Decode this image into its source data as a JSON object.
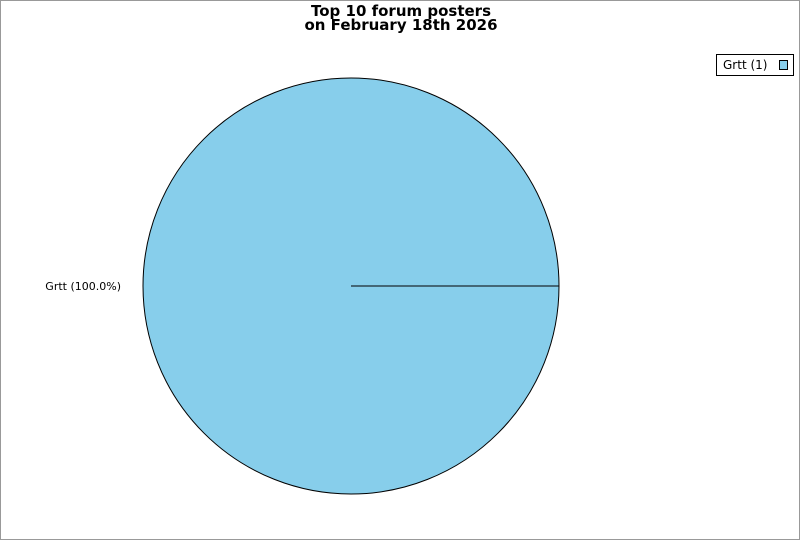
{
  "chart_data": {
    "type": "pie",
    "title": [
      "Top 10 forum posters",
      "on February 18th 2026"
    ],
    "slices": [
      {
        "name": "Grtt",
        "value": 1,
        "percent": 100.0,
        "label": "Grtt (100.0%)",
        "legend": "Grtt (1)",
        "color": "#87ceeb"
      }
    ],
    "legend_placement": "top-right"
  }
}
